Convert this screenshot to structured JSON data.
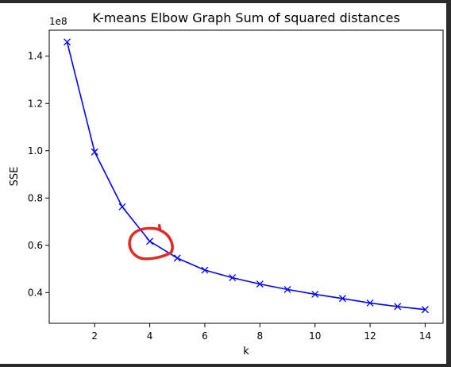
{
  "chart_data": {
    "type": "line",
    "title": "K-means Elbow Graph Sum of squared distances",
    "xlabel": "k",
    "ylabel": "SSE",
    "offset_label": "1e8",
    "x": [
      1,
      2,
      3,
      4,
      5,
      6,
      7,
      8,
      9,
      10,
      11,
      12,
      13,
      14
    ],
    "y": [
      1.46,
      0.995,
      0.763,
      0.617,
      0.546,
      0.495,
      0.463,
      0.436,
      0.413,
      0.393,
      0.375,
      0.356,
      0.341,
      0.328
    ],
    "xlim": [
      0.35,
      14.65
    ],
    "ylim": [
      0.27,
      1.51
    ],
    "xticks": [
      2,
      4,
      6,
      8,
      10,
      12,
      14
    ],
    "xtick_labels": [
      "2",
      "4",
      "6",
      "8",
      "10",
      "12",
      "14"
    ],
    "yticks": [
      0.4,
      0.6,
      0.8,
      1.0,
      1.2,
      1.4
    ],
    "ytick_labels": [
      "0.4",
      "0.6",
      "0.8",
      "1.0",
      "1.2",
      "1.4"
    ],
    "marker": "x",
    "grid": false,
    "colors": {
      "series": "#0000ff",
      "annotation": "#e32a22"
    },
    "annotation": {
      "shape": "hand-drawn-circle",
      "x": 4,
      "y": 0.61
    }
  }
}
